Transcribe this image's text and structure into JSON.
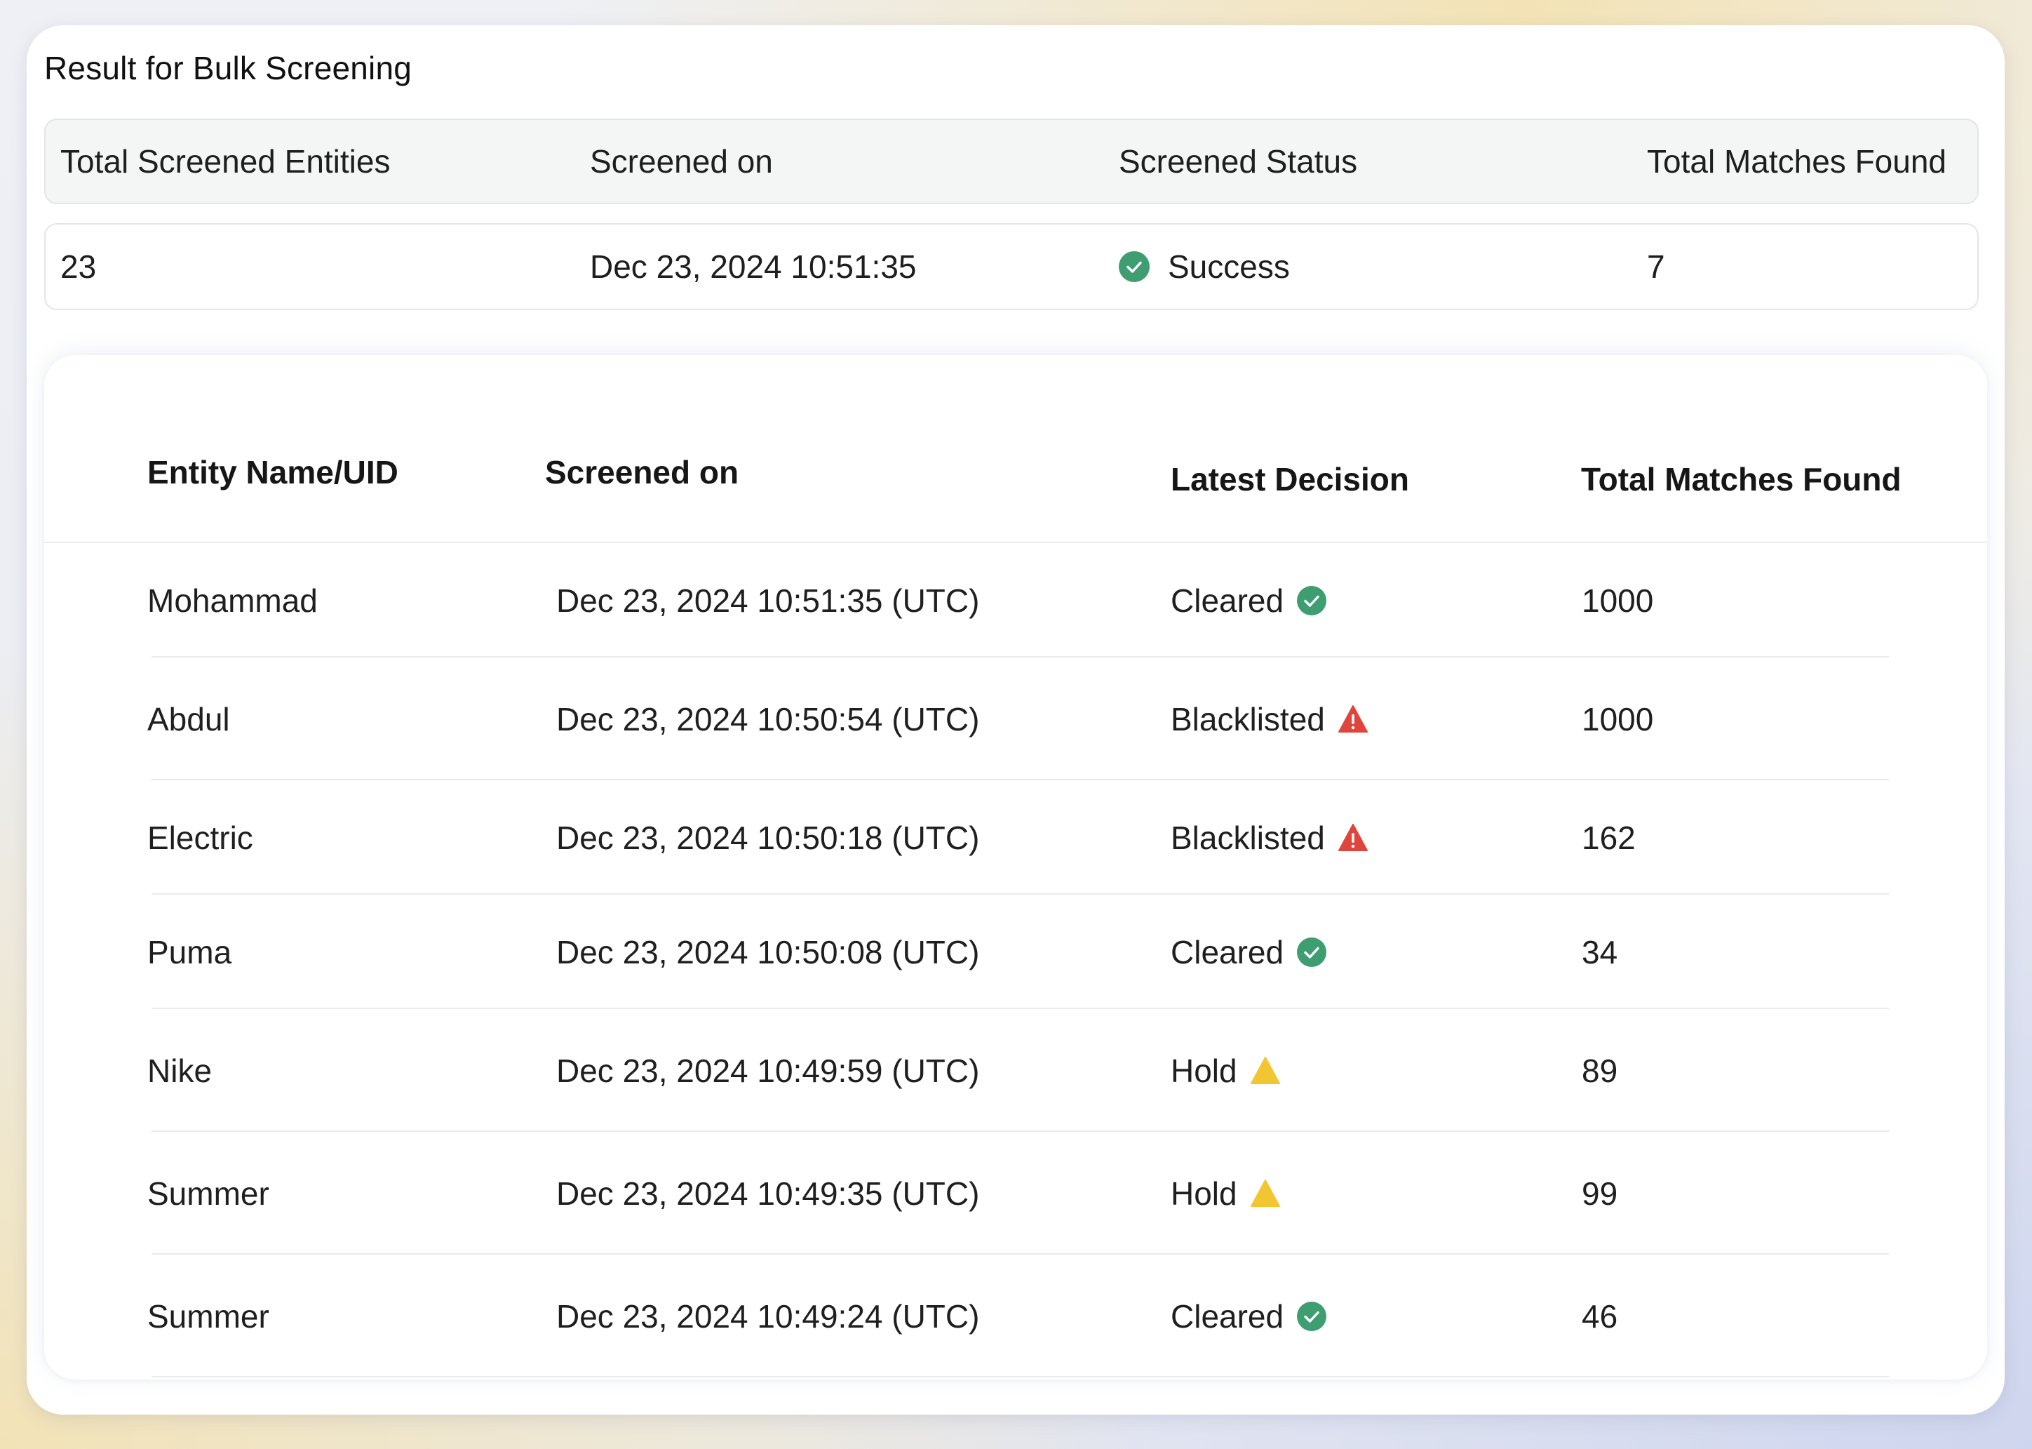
{
  "panel": {
    "title": "Result for Bulk Screening"
  },
  "summary": {
    "headers": [
      "Total Screened Entities",
      "Screened on",
      "Screened Status",
      "Total Matches Found"
    ],
    "values": {
      "total_screened": "23",
      "screened_on": "Dec 23, 2024 10:51:35",
      "status": "Success",
      "total_matches": "7"
    },
    "status_icon": "check-circle-icon",
    "status_color": "#3f9d72"
  },
  "results": {
    "headers": {
      "name": "Entity Name/UID",
      "screened_on": "Screened on",
      "decision": "Latest Decision",
      "matches": "Total Matches Found"
    },
    "rows": [
      {
        "name": "Mohammad",
        "screened_on": "Dec 23, 2024 10:51:35 (UTC)",
        "decision": "Cleared",
        "decision_icon": "check-circle-icon",
        "matches": "1000"
      },
      {
        "name": "Abdul",
        "screened_on": "Dec 23, 2024 10:50:54 (UTC)",
        "decision": "Blacklisted",
        "decision_icon": "warning-red-icon",
        "matches": "1000"
      },
      {
        "name": "Electric",
        "screened_on": "Dec 23, 2024 10:50:18 (UTC)",
        "decision": "Blacklisted",
        "decision_icon": "warning-red-icon",
        "matches": "162"
      },
      {
        "name": "Puma",
        "screened_on": "Dec 23, 2024 10:50:08 (UTC)",
        "decision": "Cleared",
        "decision_icon": "check-circle-icon",
        "matches": "34"
      },
      {
        "name": "Nike",
        "screened_on": "Dec 23, 2024 10:49:59 (UTC)",
        "decision": "Hold",
        "decision_icon": "warning-yellow-icon",
        "matches": "89"
      },
      {
        "name": "Summer",
        "screened_on": "Dec 23, 2024 10:49:35 (UTC)",
        "decision": "Hold",
        "decision_icon": "warning-yellow-icon",
        "matches": "99"
      },
      {
        "name": "Summer",
        "screened_on": "Dec 23, 2024 10:49:24 (UTC)",
        "decision": "Cleared",
        "decision_icon": "check-circle-icon",
        "matches": "46"
      }
    ]
  },
  "colors": {
    "cleared": "#3f9d72",
    "blacklisted": "#e0453d",
    "hold": "#f2c630"
  }
}
